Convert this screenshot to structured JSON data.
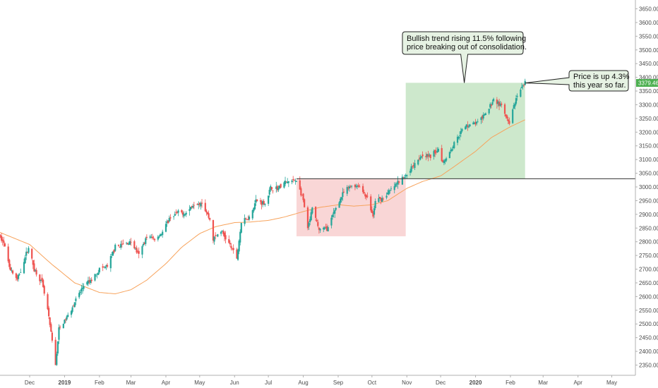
{
  "chart_data": {
    "type": "candlestick",
    "title": "",
    "xlabel": "",
    "ylabel": "",
    "ylim": [
      2325,
      3675
    ],
    "y_ticks": [
      2350,
      2400,
      2450,
      2500,
      2550,
      2600,
      2650,
      2700,
      2750,
      2800,
      2850,
      2900,
      2950,
      3000,
      3050,
      3100,
      3150,
      3200,
      3250,
      3300,
      3350,
      3400,
      3450,
      3500,
      3550,
      3600,
      3650
    ],
    "y_tick_labels": [
      "2350.00",
      "2400.00",
      "2450.00",
      "2500.00",
      "2550.00",
      "2600.00",
      "2650.00",
      "2700.00",
      "2750.00",
      "2800.00",
      "2850.00",
      "2900.00",
      "2950.00",
      "3000.00",
      "3050.00",
      "3100.00",
      "3150.00",
      "3200.00",
      "3250.00",
      "3300.00",
      "3350.00",
      "3400.00",
      "3450.00",
      "3500.00",
      "3550.00",
      "3600.00",
      "3650.00"
    ],
    "x_ticks": [
      {
        "label": "Dec",
        "date": "2018-12-01",
        "bold": false
      },
      {
        "label": "2019",
        "date": "2019-01-01",
        "bold": true
      },
      {
        "label": "Feb",
        "date": "2019-02-01",
        "bold": false
      },
      {
        "label": "Mar",
        "date": "2019-03-01",
        "bold": false
      },
      {
        "label": "Apr",
        "date": "2019-04-01",
        "bold": false
      },
      {
        "label": "May",
        "date": "2019-05-01",
        "bold": false
      },
      {
        "label": "Jun",
        "date": "2019-06-01",
        "bold": false
      },
      {
        "label": "Jul",
        "date": "2019-07-01",
        "bold": false
      },
      {
        "label": "Aug",
        "date": "2019-08-01",
        "bold": false
      },
      {
        "label": "Sep",
        "date": "2019-09-01",
        "bold": false
      },
      {
        "label": "Oct",
        "date": "2019-10-01",
        "bold": false
      },
      {
        "label": "Nov",
        "date": "2019-11-01",
        "bold": false
      },
      {
        "label": "Dec",
        "date": "2019-12-01",
        "bold": false
      },
      {
        "label": "2020",
        "date": "2020-01-01",
        "bold": true
      },
      {
        "label": "Feb",
        "date": "2020-02-01",
        "bold": false
      },
      {
        "label": "Mar",
        "date": "2020-03-01",
        "bold": false
      },
      {
        "label": "Apr",
        "date": "2020-04-01",
        "bold": false
      },
      {
        "label": "May",
        "date": "2020-05-01",
        "bold": false
      }
    ],
    "price_path": [
      [
        "2018-11-01",
        2820
      ],
      [
        "2018-11-07",
        2810
      ],
      [
        "2018-11-14",
        2700
      ],
      [
        "2018-11-20",
        2660
      ],
      [
        "2018-11-30",
        2780
      ],
      [
        "2018-12-05",
        2700
      ],
      [
        "2018-12-12",
        2650
      ],
      [
        "2018-12-17",
        2550
      ],
      [
        "2018-12-24",
        2352
      ],
      [
        "2018-12-27",
        2480
      ],
      [
        "2019-01-04",
        2530
      ],
      [
        "2019-01-10",
        2580
      ],
      [
        "2019-01-18",
        2640
      ],
      [
        "2019-01-25",
        2660
      ],
      [
        "2019-02-01",
        2700
      ],
      [
        "2019-02-08",
        2710
      ],
      [
        "2019-02-15",
        2780
      ],
      [
        "2019-02-22",
        2790
      ],
      [
        "2019-03-01",
        2800
      ],
      [
        "2019-03-08",
        2750
      ],
      [
        "2019-03-15",
        2820
      ],
      [
        "2019-03-22",
        2810
      ],
      [
        "2019-03-29",
        2835
      ],
      [
        "2019-04-05",
        2890
      ],
      [
        "2019-04-12",
        2905
      ],
      [
        "2019-04-19",
        2905
      ],
      [
        "2019-04-26",
        2940
      ],
      [
        "2019-05-03",
        2945
      ],
      [
        "2019-05-10",
        2880
      ],
      [
        "2019-05-13",
        2810
      ],
      [
        "2019-05-20",
        2840
      ],
      [
        "2019-05-29",
        2780
      ],
      [
        "2019-06-03",
        2740
      ],
      [
        "2019-06-07",
        2870
      ],
      [
        "2019-06-14",
        2890
      ],
      [
        "2019-06-20",
        2950
      ],
      [
        "2019-06-28",
        2940
      ],
      [
        "2019-07-03",
        2995
      ],
      [
        "2019-07-10",
        2995
      ],
      [
        "2019-07-15",
        3015
      ],
      [
        "2019-07-26",
        3025
      ],
      [
        "2019-08-01",
        2950
      ],
      [
        "2019-08-05",
        2845
      ],
      [
        "2019-08-09",
        2920
      ],
      [
        "2019-08-15",
        2845
      ],
      [
        "2019-08-23",
        2850
      ],
      [
        "2019-08-30",
        2925
      ],
      [
        "2019-09-06",
        2980
      ],
      [
        "2019-09-13",
        3005
      ],
      [
        "2019-09-19",
        3005
      ],
      [
        "2019-09-27",
        2960
      ],
      [
        "2019-10-02",
        2890
      ],
      [
        "2019-10-04",
        2950
      ],
      [
        "2019-10-11",
        2960
      ],
      [
        "2019-10-18",
        2990
      ],
      [
        "2019-10-25",
        3020
      ],
      [
        "2019-10-31",
        3040
      ],
      [
        "2019-11-08",
        3090
      ],
      [
        "2019-11-15",
        3120
      ],
      [
        "2019-11-22",
        3110
      ],
      [
        "2019-11-29",
        3140
      ],
      [
        "2019-12-03",
        3090
      ],
      [
        "2019-12-10",
        3135
      ],
      [
        "2019-12-17",
        3190
      ],
      [
        "2019-12-24",
        3225
      ],
      [
        "2020-01-03",
        3235
      ],
      [
        "2020-01-10",
        3265
      ],
      [
        "2020-01-17",
        3320
      ],
      [
        "2020-01-24",
        3295
      ],
      [
        "2020-01-31",
        3225
      ],
      [
        "2020-02-04",
        3300
      ],
      [
        "2020-02-10",
        3350
      ],
      [
        "2020-02-14",
        3379.46
      ]
    ],
    "moving_average": [
      [
        "2018-11-01",
        2840
      ],
      [
        "2018-12-01",
        2790
      ],
      [
        "2018-12-20",
        2720
      ],
      [
        "2019-01-10",
        2650
      ],
      [
        "2019-02-01",
        2615
      ],
      [
        "2019-02-15",
        2610
      ],
      [
        "2019-03-01",
        2625
      ],
      [
        "2019-03-15",
        2660
      ],
      [
        "2019-04-01",
        2720
      ],
      [
        "2019-04-15",
        2780
      ],
      [
        "2019-05-01",
        2830
      ],
      [
        "2019-05-15",
        2855
      ],
      [
        "2019-06-01",
        2870
      ],
      [
        "2019-06-15",
        2872
      ],
      [
        "2019-07-01",
        2878
      ],
      [
        "2019-07-15",
        2890
      ],
      [
        "2019-08-01",
        2910
      ],
      [
        "2019-08-15",
        2925
      ],
      [
        "2019-09-01",
        2935
      ],
      [
        "2019-09-15",
        2930
      ],
      [
        "2019-10-01",
        2935
      ],
      [
        "2019-10-15",
        2950
      ],
      [
        "2019-11-01",
        2995
      ],
      [
        "2019-11-15",
        3020
      ],
      [
        "2019-12-01",
        3040
      ],
      [
        "2019-12-15",
        3080
      ],
      [
        "2020-01-01",
        3130
      ],
      [
        "2020-01-15",
        3180
      ],
      [
        "2020-02-01",
        3220
      ],
      [
        "2020-02-14",
        3245
      ]
    ],
    "last_price_label": "3379.46",
    "horizontal_level": 3030,
    "consolidation_zone": {
      "start": "2019-07-26",
      "end": "2019-10-31",
      "low": 2820,
      "high": 3030
    },
    "trend_zone": {
      "start": "2019-10-31",
      "end": "2020-02-14",
      "low": 3030,
      "high": 3380
    },
    "annotations": [
      {
        "id": "bullish-trend-callout",
        "lines": [
          "Bullish trend rising 11.5% following",
          "price breaking out of consolidation."
        ],
        "target_date": "2019-12-22",
        "target_price": 3380
      },
      {
        "id": "ytd-callout",
        "lines": [
          "Price is up 4.3%",
          "this year so far."
        ],
        "target_date": "2020-02-14",
        "target_price": 3379.46
      }
    ],
    "grid": false,
    "legend": "none"
  },
  "colors": {
    "background": "#ffffff",
    "up_candle": "#26a69a",
    "down_candle": "#ef5350",
    "moving_average": "#f7a35c",
    "trend_zone": "#cde8cc",
    "consolidation_zone": "#f9d6d6",
    "level_line": "#333333",
    "axis_text": "#4a4a4a",
    "price_tag": "#4caf50",
    "callout_fill": "#e6f2e3",
    "callout_border": "#222222"
  }
}
